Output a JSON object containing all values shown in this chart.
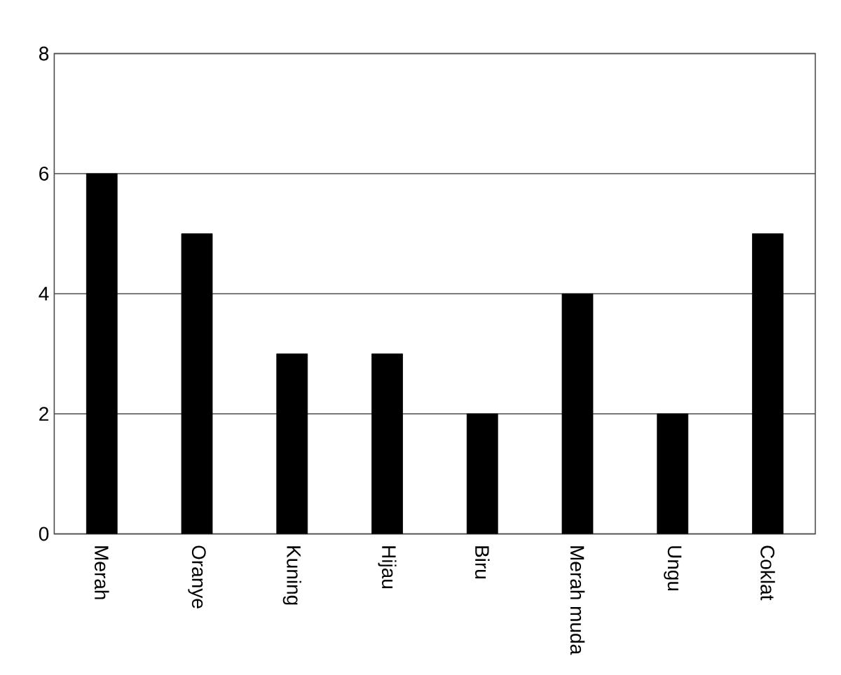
{
  "chart_data": {
    "type": "bar",
    "categories": [
      "Merah",
      "Oranye",
      "Kuning",
      "Hijau",
      "Biru",
      "Merah muda",
      "Ungu",
      "Coklat"
    ],
    "values": [
      6,
      5,
      3,
      3,
      2,
      4,
      2,
      5
    ],
    "color": "#000000",
    "ylim": [
      0,
      8
    ],
    "yticks": [
      0,
      2,
      4,
      6,
      8
    ],
    "grid": "y"
  }
}
